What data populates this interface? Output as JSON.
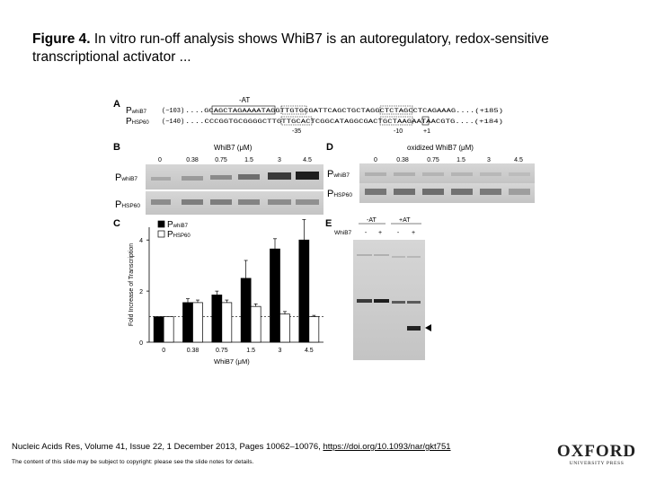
{
  "title": {
    "label": "Figure 4.",
    "text": " In vitro run-off analysis shows WhiB7 is an autoregulatory, redox-sensitive transcriptional activator ..."
  },
  "figure": {
    "panel_letters": {
      "a": "A",
      "b": "B",
      "c": "C",
      "d": "D",
      "e": "E"
    },
    "panel_a": {
      "minus_at": "-AT",
      "p_main": "P",
      "p_whib7_sub": "whiB7",
      "p_hsp60_sub": "HSP60",
      "seq1_left": "(−103)",
      "seq1": "....GCAGCTAGAAAATAGGTTGTGCGATTCAGCTGCTAGGCTCTAGCCTCAGAAAG....(+185)",
      "seq2_left": "(−140)",
      "seq2": "....CCCGGTGCGGGGCTTGTTGCACTCGGCATAGGCGACTGCTAAGAATAACGTG....(+184)",
      "m35": "-35",
      "m10": "-10",
      "p1": "+1"
    },
    "panel_b": {
      "header": "WhiB7 (μM)",
      "concentrations": [
        "0",
        "0.38",
        "0.75",
        "1.5",
        "3",
        "4.5"
      ],
      "row1_main": "P",
      "row1_sub": "whiB7",
      "row2_main": "P",
      "row2_sub": "HSP60"
    },
    "panel_d": {
      "header": "oxidized WhiB7 (μM)",
      "concentrations": [
        "0",
        "0.38",
        "0.75",
        "1.5",
        "3",
        "4.5"
      ],
      "row1_main": "P",
      "row1_sub": "whiB7",
      "row2_main": "P",
      "row2_sub": "HSP60"
    },
    "panel_e": {
      "group1": "-AT",
      "group2": "+AT",
      "row_label": "WhiB7",
      "signs": [
        "-",
        "+",
        "-",
        "+"
      ]
    }
  },
  "chart_data": {
    "type": "bar",
    "categories": [
      "0",
      "0.38",
      "0.75",
      "1.5",
      "3",
      "4.5"
    ],
    "series": [
      {
        "name": "PwhiB7",
        "color": "#000000",
        "values": [
          1.0,
          1.55,
          1.85,
          2.5,
          3.65,
          4.0
        ],
        "errors": [
          0.0,
          0.15,
          0.15,
          0.7,
          0.4,
          0.8
        ]
      },
      {
        "name": "PHSP60",
        "color": "#ffffff",
        "values": [
          1.0,
          1.55,
          1.55,
          1.4,
          1.1,
          1.0
        ],
        "errors": [
          0.0,
          0.1,
          0.1,
          0.1,
          0.1,
          0.05
        ]
      }
    ],
    "legend_main": "P",
    "legend_subs": [
      "whiB7",
      "HSP60"
    ],
    "xlabel": "WhiB7 (μM)",
    "ylabel": "Fold Increase of Transcription",
    "yticks": [
      "0",
      "2",
      "4"
    ],
    "ylim": [
      0,
      4.5
    ],
    "reference_line": 1.0
  },
  "citation": {
    "text": "Nucleic Acids Res, Volume 41, Issue 22, 1 December 2013, Pages 10062–10076, ",
    "link": "https://doi.org/10.1093/nar/gkt751"
  },
  "copyright": "The content of this slide may be subject to copyright: please see the slide notes for details.",
  "logo": {
    "main": "OXFORD",
    "sub": "UNIVERSITY PRESS"
  }
}
